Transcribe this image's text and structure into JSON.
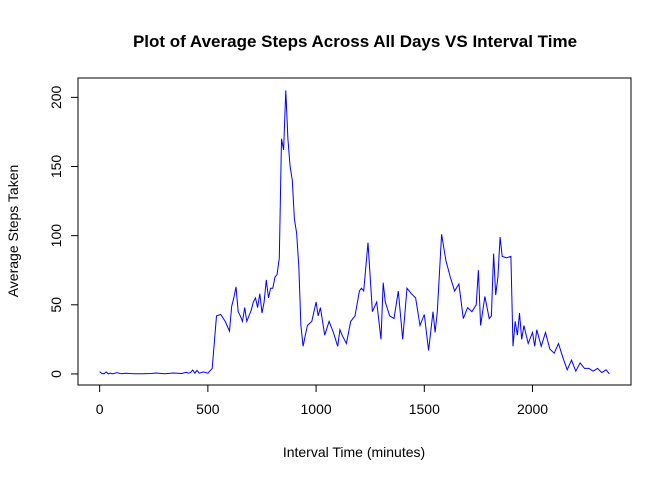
{
  "chart_data": {
    "type": "line",
    "title": "Plot of Average Steps Across All Days VS Interval Time",
    "xlabel": "Interval Time (minutes)",
    "ylabel": "Average Steps Taken",
    "xlim": [
      -100,
      2455
    ],
    "ylim": [
      -8,
      214
    ],
    "xticks": [
      0,
      500,
      1000,
      1500,
      2000
    ],
    "yticks": [
      0,
      50,
      100,
      150,
      200
    ],
    "line_color": "#0000ff",
    "grid": false,
    "series": [
      {
        "x": [
          0,
          10,
          20,
          30,
          40,
          50,
          60,
          80,
          100,
          120,
          140,
          160,
          200,
          240,
          260,
          300,
          340,
          380,
          400,
          410,
          420,
          430,
          440,
          450,
          460,
          480,
          500,
          520,
          540,
          560,
          580,
          600,
          610,
          620,
          630,
          640,
          650,
          660,
          670,
          680,
          700,
          710,
          720,
          730,
          740,
          750,
          760,
          770,
          780,
          790,
          800,
          810,
          820,
          830,
          840,
          850,
          860,
          870,
          880,
          890,
          900,
          910,
          920,
          930,
          940,
          950,
          960,
          980,
          1000,
          1010,
          1020,
          1040,
          1060,
          1080,
          1100,
          1110,
          1120,
          1140,
          1160,
          1180,
          1200,
          1210,
          1220,
          1240,
          1260,
          1280,
          1300,
          1310,
          1320,
          1340,
          1360,
          1380,
          1400,
          1420,
          1440,
          1460,
          1480,
          1500,
          1520,
          1540,
          1550,
          1560,
          1580,
          1600,
          1620,
          1640,
          1660,
          1680,
          1700,
          1720,
          1740,
          1750,
          1760,
          1780,
          1800,
          1810,
          1820,
          1830,
          1840,
          1850,
          1860,
          1880,
          1900,
          1910,
          1920,
          1930,
          1940,
          1950,
          1960,
          1980,
          2000,
          2010,
          2020,
          2040,
          2060,
          2080,
          2100,
          2120,
          2140,
          2160,
          2180,
          2200,
          2220,
          2240,
          2260,
          2280,
          2300,
          2320,
          2340,
          2355
        ],
        "y": [
          1.7,
          0.3,
          0.1,
          1.5,
          0.1,
          0.6,
          0.1,
          1.0,
          0.1,
          0.5,
          0.3,
          0.2,
          0.1,
          0.3,
          0.7,
          0.2,
          0.7,
          0.3,
          1.2,
          0.5,
          1.0,
          2.8,
          0.6,
          2.6,
          0.5,
          1.5,
          0.5,
          4.0,
          42,
          43,
          38,
          31,
          49,
          55,
          63,
          45,
          42,
          38,
          48,
          38,
          46,
          52,
          55,
          48,
          58,
          44,
          52,
          68,
          55,
          62,
          62,
          70,
          72,
          84,
          170,
          162,
          205,
          170,
          150,
          140,
          112,
          102,
          78,
          35,
          20,
          28,
          35,
          38,
          52,
          42,
          48,
          28,
          38,
          30,
          20,
          32,
          28,
          22,
          38,
          42,
          60,
          62,
          60,
          95,
          45,
          52,
          25,
          66,
          52,
          42,
          40,
          60,
          25,
          62,
          58,
          55,
          35,
          43,
          17,
          45,
          30,
          45,
          101,
          82,
          70,
          60,
          65,
          40,
          48,
          45,
          50,
          75,
          35,
          56,
          40,
          42,
          87,
          57,
          70,
          99,
          85,
          84,
          85,
          20,
          38,
          28,
          44,
          25,
          35,
          22,
          30,
          20,
          32,
          20,
          30,
          18,
          15,
          22,
          12,
          3,
          10,
          2,
          8,
          4,
          4,
          2,
          4,
          1,
          3,
          0
        ]
      }
    ]
  }
}
